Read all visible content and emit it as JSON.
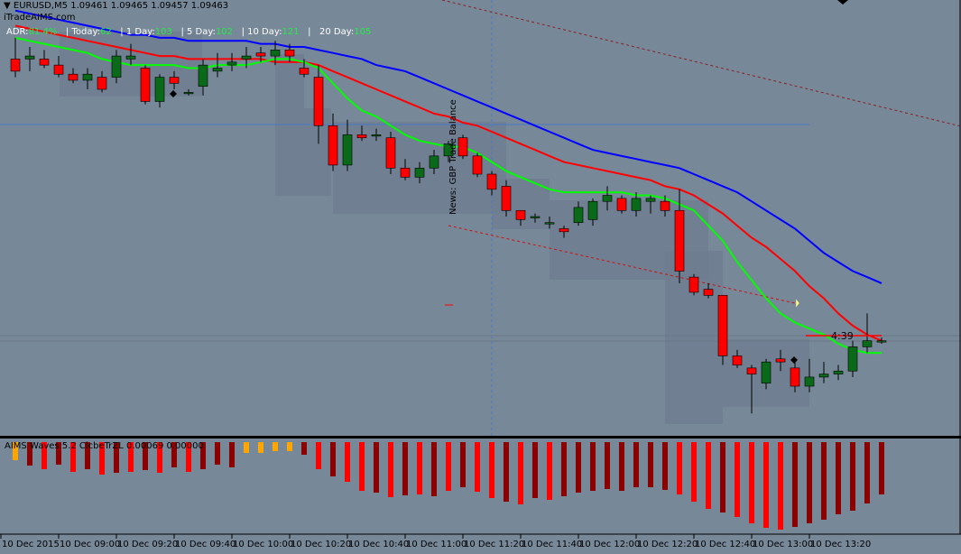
{
  "chart_header": {
    "symbol": "EURUSD,M5",
    "ohlc": "1.09461 1.09465 1.09457 1.09463",
    "site": "iTradeAIMS.com"
  },
  "adr_panel": {
    "adr_label": "ADR:",
    "adr_value": "81.4%",
    "today_label": "Today:",
    "today_value": "62",
    "day1_label": "1 Day:",
    "day1_value": "103",
    "day5_label": "5 Day:",
    "day5_value": "102",
    "day10_label": "10 Day:",
    "day10_value": "121",
    "day20_label": "20 Day:",
    "day20_value": "105",
    "separator": "|"
  },
  "indicator": {
    "label": "AIMS Waves 5.2 ClcbeTrZL 0.00069 0.00000"
  },
  "news_label": "News: GBP Trade Balance",
  "countdown": "4:39",
  "colors": {
    "background": "#778899",
    "bull": "#0a6a1a",
    "bear": "#ff0000",
    "ma_fast": "#00ff00",
    "ma_mid": "#ff0000",
    "ma_slow": "#0000ff",
    "hist_bright": "#ff0000",
    "hist_dark": "#8b0000",
    "hist_orange": "#ffa500"
  },
  "chart_data": {
    "type": "candlestick",
    "x_labels": [
      "10 Dec 2015",
      "10 Dec 09:00",
      "10 Dec 09:20",
      "10 Dec 09:40",
      "10 Dec 10:00",
      "10 Dec 10:20",
      "10 Dec 10:40",
      "10 Dec 11:00",
      "10 Dec 11:20",
      "10 Dec 11:40",
      "10 Dec 12:00",
      "10 Dec 12:20",
      "10 Dec 12:40",
      "10 Dec 13:00",
      "10 Dec 13:20"
    ],
    "candles": [
      {
        "o": 1.0972,
        "h": 1.0979,
        "l": 1.0966,
        "c": 1.0968
      },
      {
        "o": 1.0972,
        "h": 1.0976,
        "l": 1.0968,
        "c": 1.0973
      },
      {
        "o": 1.0972,
        "h": 1.0975,
        "l": 1.0969,
        "c": 1.097
      },
      {
        "o": 1.097,
        "h": 1.0973,
        "l": 1.0966,
        "c": 1.0967
      },
      {
        "o": 1.0967,
        "h": 1.0969,
        "l": 1.0964,
        "c": 1.0965
      },
      {
        "o": 1.0965,
        "h": 1.0969,
        "l": 1.0962,
        "c": 1.0967
      },
      {
        "o": 1.0966,
        "h": 1.0968,
        "l": 1.0961,
        "c": 1.0962
      },
      {
        "o": 1.0966,
        "h": 1.0975,
        "l": 1.0964,
        "c": 1.0973
      },
      {
        "o": 1.0972,
        "h": 1.0977,
        "l": 1.097,
        "c": 1.0973
      },
      {
        "o": 1.0969,
        "h": 1.097,
        "l": 1.0957,
        "c": 1.0958
      },
      {
        "o": 1.0958,
        "h": 1.0967,
        "l": 1.0956,
        "c": 1.0966
      },
      {
        "o": 1.0966,
        "h": 1.0968,
        "l": 1.0962,
        "c": 1.0964
      },
      {
        "o": 1.0961,
        "h": 1.0962,
        "l": 1.096,
        "c": 1.0961
      },
      {
        "o": 1.0963,
        "h": 1.0972,
        "l": 1.096,
        "c": 1.097
      },
      {
        "o": 1.0968,
        "h": 1.0974,
        "l": 1.0966,
        "c": 1.0969
      },
      {
        "o": 1.097,
        "h": 1.0974,
        "l": 1.0968,
        "c": 1.0971
      },
      {
        "o": 1.0972,
        "h": 1.0976,
        "l": 1.0969,
        "c": 1.0973
      },
      {
        "o": 1.0974,
        "h": 1.0976,
        "l": 1.0971,
        "c": 1.0973
      },
      {
        "o": 1.0973,
        "h": 1.0978,
        "l": 1.097,
        "c": 1.0975
      },
      {
        "o": 1.0975,
        "h": 1.0977,
        "l": 1.0971,
        "c": 1.0973
      },
      {
        "o": 1.0969,
        "h": 1.0972,
        "l": 1.0966,
        "c": 1.0967
      },
      {
        "o": 1.0966,
        "h": 1.097,
        "l": 1.0944,
        "c": 1.095
      },
      {
        "o": 1.095,
        "h": 1.0954,
        "l": 1.0935,
        "c": 1.0937
      },
      {
        "o": 1.0937,
        "h": 1.0952,
        "l": 1.0935,
        "c": 1.0947
      },
      {
        "o": 1.0947,
        "h": 1.095,
        "l": 1.0945,
        "c": 1.0946
      },
      {
        "o": 1.0947,
        "h": 1.0949,
        "l": 1.0945,
        "c": 1.0947
      },
      {
        "o": 1.0946,
        "h": 1.0948,
        "l": 1.0934,
        "c": 1.0936
      },
      {
        "o": 1.0936,
        "h": 1.0939,
        "l": 1.0932,
        "c": 1.0933
      },
      {
        "o": 1.0933,
        "h": 1.0938,
        "l": 1.0931,
        "c": 1.0936
      },
      {
        "o": 1.0936,
        "h": 1.0942,
        "l": 1.0934,
        "c": 1.094
      },
      {
        "o": 1.094,
        "h": 1.0945,
        "l": 1.0938,
        "c": 1.0944
      },
      {
        "o": 1.0946,
        "h": 1.0947,
        "l": 1.0939,
        "c": 1.094
      },
      {
        "o": 1.094,
        "h": 1.0941,
        "l": 1.0933,
        "c": 1.0934
      },
      {
        "o": 1.0934,
        "h": 1.0935,
        "l": 1.0927,
        "c": 1.0929
      },
      {
        "o": 1.093,
        "h": 1.0932,
        "l": 1.092,
        "c": 1.0922
      },
      {
        "o": 1.0922,
        "h": 1.0922,
        "l": 1.0917,
        "c": 1.0919
      },
      {
        "o": 1.092,
        "h": 1.0921,
        "l": 1.0918,
        "c": 1.092
      },
      {
        "o": 1.0918,
        "h": 1.092,
        "l": 1.0916,
        "c": 1.0918
      },
      {
        "o": 1.0916,
        "h": 1.0917,
        "l": 1.0913,
        "c": 1.0915
      },
      {
        "o": 1.0918,
        "h": 1.0925,
        "l": 1.0917,
        "c": 1.0923
      },
      {
        "o": 1.0919,
        "h": 1.0926,
        "l": 1.0917,
        "c": 1.0925
      },
      {
        "o": 1.0925,
        "h": 1.093,
        "l": 1.0922,
        "c": 1.0927
      },
      {
        "o": 1.0926,
        "h": 1.0927,
        "l": 1.0921,
        "c": 1.0922
      },
      {
        "o": 1.0922,
        "h": 1.0928,
        "l": 1.092,
        "c": 1.0926
      },
      {
        "o": 1.0925,
        "h": 1.0927,
        "l": 1.0921,
        "c": 1.0926
      },
      {
        "o": 1.0925,
        "h": 1.0927,
        "l": 1.092,
        "c": 1.0922
      },
      {
        "o": 1.0922,
        "h": 1.0929,
        "l": 1.0898,
        "c": 1.0902
      },
      {
        "o": 1.09,
        "h": 1.0901,
        "l": 1.0894,
        "c": 1.0895
      },
      {
        "o": 1.0896,
        "h": 1.0898,
        "l": 1.0893,
        "c": 1.0894
      },
      {
        "o": 1.0894,
        "h": 1.0894,
        "l": 1.0871,
        "c": 1.0874
      },
      {
        "o": 1.0874,
        "h": 1.0876,
        "l": 1.087,
        "c": 1.0871
      },
      {
        "o": 1.087,
        "h": 1.0871,
        "l": 1.0855,
        "c": 1.0868
      },
      {
        "o": 1.0865,
        "h": 1.0873,
        "l": 1.0863,
        "c": 1.0872
      },
      {
        "o": 1.0873,
        "h": 1.0876,
        "l": 1.0869,
        "c": 1.0872
      },
      {
        "o": 1.087,
        "h": 1.0872,
        "l": 1.0862,
        "c": 1.0864
      },
      {
        "o": 1.0864,
        "h": 1.0873,
        "l": 1.0862,
        "c": 1.0867
      },
      {
        "o": 1.0867,
        "h": 1.0872,
        "l": 1.0865,
        "c": 1.0868
      },
      {
        "o": 1.0868,
        "h": 1.0871,
        "l": 1.0866,
        "c": 1.0869
      },
      {
        "o": 1.0869,
        "h": 1.0879,
        "l": 1.0867,
        "c": 1.0877
      },
      {
        "o": 1.0877,
        "h": 1.0888,
        "l": 1.0875,
        "c": 1.0879
      },
      {
        "o": 1.0879,
        "h": 1.088,
        "l": 1.0878,
        "c": 1.0879
      }
    ],
    "ma_fast": [
      1.0979,
      1.0978,
      1.0977,
      1.0976,
      1.0975,
      1.0974,
      1.0972,
      1.0971,
      1.097,
      1.097,
      1.097,
      1.097,
      1.0969,
      1.0969,
      1.097,
      1.097,
      1.097,
      1.0971,
      1.0972,
      1.0972,
      1.0971,
      1.0969,
      1.0964,
      1.0959,
      1.0955,
      1.0953,
      1.095,
      1.0947,
      1.0945,
      1.0944,
      1.0943,
      1.0943,
      1.0941,
      1.0938,
      1.0935,
      1.0933,
      1.0931,
      1.0929,
      1.0928,
      1.0928,
      1.0928,
      1.0928,
      1.0928,
      1.0927,
      1.0927,
      1.0926,
      1.0924,
      1.0922,
      1.0917,
      1.0912,
      1.0905,
      1.0899,
      1.0893,
      1.0888,
      1.0885,
      1.0883,
      1.0881,
      1.0878,
      1.0876,
      1.0875,
      1.0875
    ],
    "ma_mid": [
      1.0983,
      1.0982,
      1.0981,
      1.098,
      1.0979,
      1.0978,
      1.0977,
      1.0976,
      1.0975,
      1.0974,
      1.0973,
      1.0973,
      1.0972,
      1.0972,
      1.0972,
      1.0972,
      1.0972,
      1.0972,
      1.0971,
      1.0971,
      1.0971,
      1.097,
      1.0968,
      1.0966,
      1.0964,
      1.0962,
      1.096,
      1.0958,
      1.0956,
      1.0954,
      1.0953,
      1.0951,
      1.095,
      1.0948,
      1.0946,
      1.0944,
      1.0942,
      1.094,
      1.0938,
      1.0937,
      1.0936,
      1.0935,
      1.0934,
      1.0933,
      1.0932,
      1.093,
      1.0929,
      1.0927,
      1.0924,
      1.0921,
      1.0917,
      1.0913,
      1.091,
      1.0906,
      1.0902,
      1.0897,
      1.0893,
      1.0888,
      1.0884,
      1.0881,
      1.0879
    ],
    "ma_slow": [
      1.0988,
      1.0987,
      1.0986,
      1.0985,
      1.0984,
      1.0983,
      1.0982,
      1.0981,
      1.098,
      1.098,
      1.0979,
      1.0979,
      1.0978,
      1.0978,
      1.0978,
      1.0978,
      1.0978,
      1.0977,
      1.0977,
      1.0976,
      1.0976,
      1.0975,
      1.0974,
      1.0973,
      1.0972,
      1.097,
      1.0969,
      1.0968,
      1.0966,
      1.0964,
      1.0962,
      1.096,
      1.0958,
      1.0956,
      1.0954,
      1.0952,
      1.095,
      1.0948,
      1.0946,
      1.0944,
      1.0942,
      1.0941,
      1.094,
      1.0939,
      1.0938,
      1.0937,
      1.0936,
      1.0934,
      1.0932,
      1.093,
      1.0928,
      1.0925,
      1.0922,
      1.0919,
      1.0916,
      1.0912,
      1.0908,
      1.0905,
      1.0902,
      1.09,
      1.0898
    ],
    "histogram": [
      {
        "v": -20,
        "c": "orange"
      },
      {
        "v": -26,
        "c": "dark"
      },
      {
        "v": -30,
        "c": "bright"
      },
      {
        "v": -25,
        "c": "dark"
      },
      {
        "v": -33,
        "c": "bright"
      },
      {
        "v": -30,
        "c": "dark"
      },
      {
        "v": -36,
        "c": "bright"
      },
      {
        "v": -34,
        "c": "dark"
      },
      {
        "v": -33,
        "c": "bright"
      },
      {
        "v": -31,
        "c": "dark"
      },
      {
        "v": -34,
        "c": "bright"
      },
      {
        "v": -28,
        "c": "dark"
      },
      {
        "v": -33,
        "c": "bright"
      },
      {
        "v": -30,
        "c": "dark"
      },
      {
        "v": -25,
        "c": "dark"
      },
      {
        "v": -28,
        "c": "dark"
      },
      {
        "v": -12,
        "c": "orange"
      },
      {
        "v": -12,
        "c": "orange"
      },
      {
        "v": -10,
        "c": "orange"
      },
      {
        "v": -10,
        "c": "orange"
      },
      {
        "v": -14,
        "c": "dark"
      },
      {
        "v": -30,
        "c": "bright"
      },
      {
        "v": -38,
        "c": "dark"
      },
      {
        "v": -44,
        "c": "bright"
      },
      {
        "v": -54,
        "c": "bright"
      },
      {
        "v": -56,
        "c": "dark"
      },
      {
        "v": -61,
        "c": "bright"
      },
      {
        "v": -59,
        "c": "dark"
      },
      {
        "v": -58,
        "c": "bright"
      },
      {
        "v": -60,
        "c": "dark"
      },
      {
        "v": -54,
        "c": "bright"
      },
      {
        "v": -50,
        "c": "dark"
      },
      {
        "v": -55,
        "c": "bright"
      },
      {
        "v": -62,
        "c": "bright"
      },
      {
        "v": -66,
        "c": "dark"
      },
      {
        "v": -69,
        "c": "bright"
      },
      {
        "v": -62,
        "c": "dark"
      },
      {
        "v": -64,
        "c": "bright"
      },
      {
        "v": -60,
        "c": "dark"
      },
      {
        "v": -56,
        "c": "dark"
      },
      {
        "v": -54,
        "c": "dark"
      },
      {
        "v": -52,
        "c": "dark"
      },
      {
        "v": -54,
        "c": "dark"
      },
      {
        "v": -50,
        "c": "dark"
      },
      {
        "v": -50,
        "c": "dark"
      },
      {
        "v": -53,
        "c": "dark"
      },
      {
        "v": -58,
        "c": "bright"
      },
      {
        "v": -66,
        "c": "bright"
      },
      {
        "v": -74,
        "c": "bright"
      },
      {
        "v": -78,
        "c": "dark"
      },
      {
        "v": -83,
        "c": "bright"
      },
      {
        "v": -90,
        "c": "bright"
      },
      {
        "v": -95,
        "c": "bright"
      },
      {
        "v": -97,
        "c": "bright"
      },
      {
        "v": -94,
        "c": "dark"
      },
      {
        "v": -90,
        "c": "dark"
      },
      {
        "v": -86,
        "c": "dark"
      },
      {
        "v": -80,
        "c": "dark"
      },
      {
        "v": -76,
        "c": "dark"
      },
      {
        "v": -68,
        "c": "dark"
      },
      {
        "v": -58,
        "c": "dark"
      }
    ]
  }
}
